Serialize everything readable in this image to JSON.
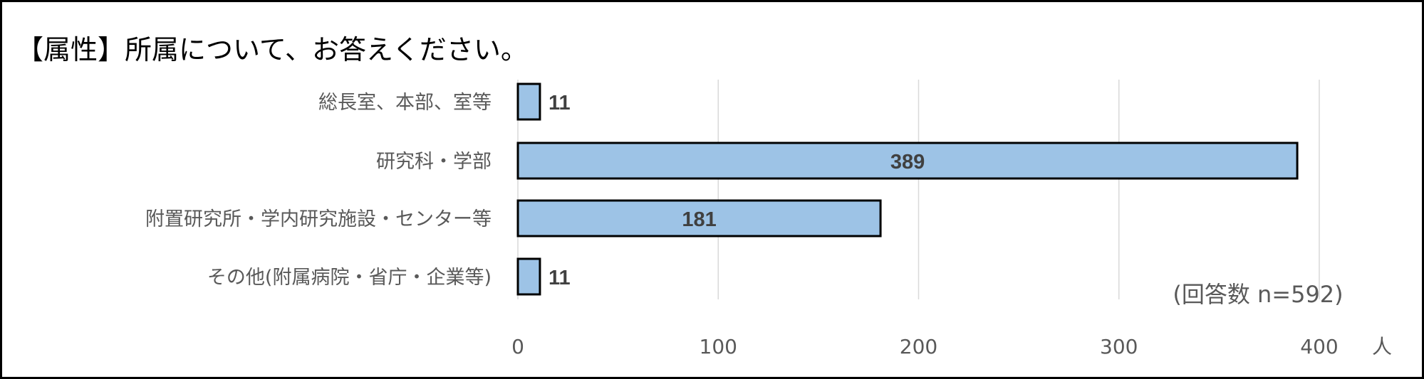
{
  "chart_data": {
    "type": "bar",
    "orientation": "horizontal",
    "title": "【属性】所属について、お答えください。",
    "categories": [
      "総長室、本部、室等",
      "研究科・学部",
      "附置研究所・学内研究施設・センター等",
      "その他(附属病院・省庁・企業等)"
    ],
    "values": [
      11,
      389,
      181,
      11
    ],
    "data_labels": [
      "11",
      "389",
      "181",
      "11"
    ],
    "xlim": [
      0,
      400
    ],
    "xticks": [
      "0",
      "100",
      "200",
      "300",
      "400"
    ],
    "xunit": "人",
    "annotation": "(回答数 n=592)",
    "grid": true,
    "bar_color": "#9DC3E6",
    "bar_edge_color": "#000000",
    "gridline_color": "#D9D9D9"
  }
}
